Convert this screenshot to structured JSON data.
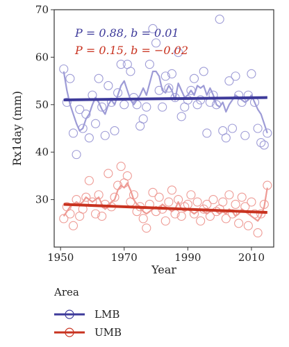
{
  "chart_data": {
    "type": "scatter",
    "xlabel": "Year",
    "ylabel": "Rx1day (mm)",
    "xlim": [
      1948,
      2017
    ],
    "ylim": [
      20,
      70
    ],
    "xticks": [
      1950,
      1970,
      1990,
      2010
    ],
    "yticks": [
      30,
      40,
      50,
      60,
      70
    ],
    "legend_title": "Area",
    "legend_position": "bottom-left",
    "annotations": [
      {
        "text": "P = 0.88, b = 0.01",
        "series": "LMB"
      },
      {
        "text": "P = 0.15, b = −0.02",
        "series": "UMB"
      }
    ],
    "series": [
      {
        "name": "LMB",
        "color": "#3d3a9a",
        "light_color": "#9d9bd6",
        "trend": [
          [
            1951,
            51.0
          ],
          [
            2015,
            51.5
          ]
        ],
        "smooth": [
          [
            1951,
            57.0
          ],
          [
            1952,
            53.0
          ],
          [
            1953,
            50.0
          ],
          [
            1954,
            48.0
          ],
          [
            1955,
            46.0
          ],
          [
            1956,
            44.5
          ],
          [
            1957,
            45.0
          ],
          [
            1958,
            47.0
          ],
          [
            1959,
            48.0
          ],
          [
            1960,
            50.0
          ],
          [
            1961,
            51.5
          ],
          [
            1962,
            50.5
          ],
          [
            1963,
            49.0
          ],
          [
            1964,
            48.0
          ],
          [
            1965,
            50.0
          ],
          [
            1966,
            51.0
          ],
          [
            1967,
            50.0
          ],
          [
            1968,
            52.0
          ],
          [
            1969,
            54.0
          ],
          [
            1970,
            55.0
          ],
          [
            1971,
            53.0
          ],
          [
            1972,
            51.0
          ],
          [
            1973,
            50.0
          ],
          [
            1974,
            51.0
          ],
          [
            1975,
            52.0
          ],
          [
            1976,
            53.5
          ],
          [
            1977,
            52.0
          ],
          [
            1978,
            54.5
          ],
          [
            1979,
            57.0
          ],
          [
            1980,
            57.0
          ],
          [
            1981,
            56.0
          ],
          [
            1982,
            53.0
          ],
          [
            1983,
            52.5
          ],
          [
            1984,
            54.0
          ],
          [
            1985,
            53.0
          ],
          [
            1986,
            51.0
          ],
          [
            1987,
            54.5
          ],
          [
            1988,
            53.0
          ],
          [
            1989,
            51.5
          ],
          [
            1990,
            52.0
          ],
          [
            1991,
            53.0
          ],
          [
            1992,
            52.0
          ],
          [
            1993,
            54.0
          ],
          [
            1994,
            53.5
          ],
          [
            1995,
            54.0
          ],
          [
            1996,
            52.0
          ],
          [
            1997,
            53.5
          ],
          [
            1998,
            52.0
          ],
          [
            1999,
            50.0
          ],
          [
            2000,
            49.5
          ],
          [
            2001,
            50.5
          ],
          [
            2002,
            48.5
          ],
          [
            2003,
            50.0
          ],
          [
            2004,
            51.0
          ],
          [
            2005,
            52.0
          ],
          [
            2006,
            51.5
          ],
          [
            2007,
            51.0
          ],
          [
            2008,
            50.5
          ],
          [
            2009,
            51.0
          ],
          [
            2010,
            52.0
          ],
          [
            2011,
            50.5
          ],
          [
            2012,
            49.0
          ],
          [
            2013,
            48.0
          ],
          [
            2014,
            46.0
          ],
          [
            2015,
            44.0
          ]
        ],
        "points": [
          [
            1951,
            57.5
          ],
          [
            1952,
            50.5
          ],
          [
            1953,
            55.5
          ],
          [
            1954,
            44.0
          ],
          [
            1955,
            39.5
          ],
          [
            1956,
            49.0
          ],
          [
            1957,
            45.0
          ],
          [
            1958,
            48.0
          ],
          [
            1959,
            43.0
          ],
          [
            1960,
            52.0
          ],
          [
            1961,
            46.0
          ],
          [
            1962,
            55.5
          ],
          [
            1963,
            49.5
          ],
          [
            1964,
            43.5
          ],
          [
            1965,
            54.0
          ],
          [
            1966,
            50.5
          ],
          [
            1967,
            44.5
          ],
          [
            1968,
            52.5
          ],
          [
            1969,
            58.5
          ],
          [
            1970,
            50.0
          ],
          [
            1971,
            58.5
          ],
          [
            1972,
            57.0
          ],
          [
            1973,
            51.5
          ],
          [
            1974,
            50.0
          ],
          [
            1975,
            45.5
          ],
          [
            1976,
            47.0
          ],
          [
            1977,
            49.5
          ],
          [
            1978,
            58.5
          ],
          [
            1979,
            66.0
          ],
          [
            1980,
            63.0
          ],
          [
            1981,
            53.0
          ],
          [
            1982,
            49.5
          ],
          [
            1983,
            56.0
          ],
          [
            1984,
            53.5
          ],
          [
            1985,
            56.5
          ],
          [
            1986,
            51.5
          ],
          [
            1987,
            61.0
          ],
          [
            1988,
            47.5
          ],
          [
            1989,
            49.5
          ],
          [
            1990,
            51.0
          ],
          [
            1991,
            53.0
          ],
          [
            1992,
            55.5
          ],
          [
            1993,
            50.0
          ],
          [
            1994,
            51.0
          ],
          [
            1995,
            57.0
          ],
          [
            1996,
            44.0
          ],
          [
            1997,
            50.5
          ],
          [
            1998,
            52.0
          ],
          [
            1999,
            50.0
          ],
          [
            2000,
            68.0
          ],
          [
            2001,
            44.5
          ],
          [
            2002,
            43.0
          ],
          [
            2003,
            55.0
          ],
          [
            2004,
            45.0
          ],
          [
            2005,
            56.0
          ],
          [
            2006,
            52.0
          ],
          [
            2007,
            50.5
          ],
          [
            2008,
            43.5
          ],
          [
            2009,
            52.0
          ],
          [
            2010,
            56.5
          ],
          [
            2011,
            50.5
          ],
          [
            2012,
            45.0
          ],
          [
            2013,
            42.0
          ],
          [
            2014,
            41.5
          ],
          [
            2015,
            44.0
          ]
        ]
      },
      {
        "name": "UMB",
        "color": "#c8321f",
        "light_color": "#ee9a94",
        "trend": [
          [
            1951,
            29.0
          ],
          [
            2015,
            27.3
          ]
        ],
        "smooth": [
          [
            1951,
            26.5
          ],
          [
            1952,
            27.5
          ],
          [
            1953,
            28.5
          ],
          [
            1954,
            29.0
          ],
          [
            1955,
            29.5
          ],
          [
            1956,
            29.0
          ],
          [
            1957,
            29.5
          ],
          [
            1958,
            30.5
          ],
          [
            1959,
            30.0
          ],
          [
            1960,
            29.5
          ],
          [
            1961,
            30.0
          ],
          [
            1962,
            30.5
          ],
          [
            1963,
            29.0
          ],
          [
            1964,
            28.0
          ],
          [
            1965,
            28.5
          ],
          [
            1966,
            29.5
          ],
          [
            1967,
            30.0
          ],
          [
            1968,
            32.0
          ],
          [
            1969,
            33.0
          ],
          [
            1970,
            32.5
          ],
          [
            1971,
            33.5
          ],
          [
            1972,
            32.0
          ],
          [
            1973,
            30.0
          ],
          [
            1974,
            29.0
          ],
          [
            1975,
            28.5
          ],
          [
            1976,
            27.5
          ],
          [
            1977,
            27.0
          ],
          [
            1978,
            27.5
          ],
          [
            1979,
            28.0
          ],
          [
            1980,
            28.5
          ],
          [
            1981,
            28.0
          ],
          [
            1982,
            29.0
          ],
          [
            1983,
            28.5
          ],
          [
            1984,
            28.0
          ],
          [
            1985,
            27.5
          ],
          [
            1986,
            28.0
          ],
          [
            1987,
            29.5
          ],
          [
            1988,
            28.0
          ],
          [
            1989,
            27.5
          ],
          [
            1990,
            28.0
          ],
          [
            1991,
            27.5
          ],
          [
            1992,
            27.0
          ],
          [
            1993,
            27.5
          ],
          [
            1994,
            28.0
          ],
          [
            1995,
            27.5
          ],
          [
            1996,
            27.0
          ],
          [
            1997,
            27.5
          ],
          [
            1998,
            28.0
          ],
          [
            1999,
            27.5
          ],
          [
            2000,
            27.0
          ],
          [
            2001,
            27.5
          ],
          [
            2002,
            27.0
          ],
          [
            2003,
            28.0
          ],
          [
            2004,
            27.5
          ],
          [
            2005,
            26.5
          ],
          [
            2006,
            27.0
          ],
          [
            2007,
            28.0
          ],
          [
            2008,
            27.5
          ],
          [
            2009,
            27.0
          ],
          [
            2010,
            26.5
          ],
          [
            2011,
            26.0
          ],
          [
            2012,
            25.5
          ],
          [
            2013,
            26.5
          ],
          [
            2014,
            28.5
          ],
          [
            2015,
            32.5
          ]
        ],
        "points": [
          [
            1951,
            26.0
          ],
          [
            1952,
            28.5
          ],
          [
            1953,
            27.0
          ],
          [
            1954,
            24.5
          ],
          [
            1955,
            30.0
          ],
          [
            1956,
            26.5
          ],
          [
            1957,
            28.0
          ],
          [
            1958,
            30.5
          ],
          [
            1959,
            34.0
          ],
          [
            1960,
            29.5
          ],
          [
            1961,
            27.0
          ],
          [
            1962,
            31.0
          ],
          [
            1963,
            26.5
          ],
          [
            1964,
            29.0
          ],
          [
            1965,
            35.5
          ],
          [
            1966,
            28.5
          ],
          [
            1967,
            30.5
          ],
          [
            1968,
            33.0
          ],
          [
            1969,
            37.0
          ],
          [
            1970,
            33.5
          ],
          [
            1971,
            35.0
          ],
          [
            1972,
            29.5
          ],
          [
            1973,
            31.0
          ],
          [
            1974,
            27.5
          ],
          [
            1975,
            28.5
          ],
          [
            1976,
            26.0
          ],
          [
            1977,
            24.0
          ],
          [
            1978,
            29.0
          ],
          [
            1979,
            31.5
          ],
          [
            1980,
            27.5
          ],
          [
            1981,
            30.5
          ],
          [
            1982,
            28.0
          ],
          [
            1983,
            25.5
          ],
          [
            1984,
            29.5
          ],
          [
            1985,
            32.0
          ],
          [
            1986,
            27.0
          ],
          [
            1987,
            30.0
          ],
          [
            1988,
            26.5
          ],
          [
            1989,
            28.5
          ],
          [
            1990,
            29.0
          ],
          [
            1991,
            31.0
          ],
          [
            1992,
            27.0
          ],
          [
            1993,
            29.5
          ],
          [
            1994,
            25.5
          ],
          [
            1995,
            28.0
          ],
          [
            1996,
            29.0
          ],
          [
            1997,
            26.5
          ],
          [
            1998,
            30.0
          ],
          [
            1999,
            27.5
          ],
          [
            2000,
            28.0
          ],
          [
            2001,
            29.5
          ],
          [
            2002,
            26.0
          ],
          [
            2003,
            31.0
          ],
          [
            2004,
            27.0
          ],
          [
            2005,
            29.0
          ],
          [
            2006,
            25.0
          ],
          [
            2007,
            30.5
          ],
          [
            2008,
            28.5
          ],
          [
            2009,
            24.5
          ],
          [
            2010,
            29.5
          ],
          [
            2011,
            27.0
          ],
          [
            2012,
            23.0
          ],
          [
            2013,
            27.0
          ],
          [
            2014,
            29.0
          ],
          [
            2015,
            33.0
          ]
        ]
      }
    ]
  }
}
